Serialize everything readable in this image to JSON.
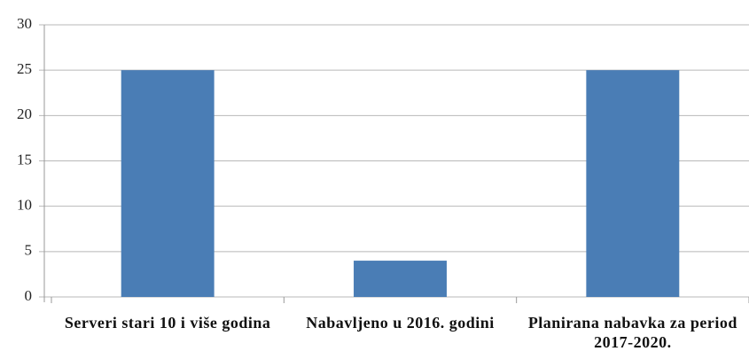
{
  "chart_data": {
    "type": "bar",
    "categories": [
      "Serveri stari 10 i više godina",
      "Nabavljeno u 2016. godini",
      "Planirana nabavka za period 2017-2020."
    ],
    "values": [
      25,
      4,
      25
    ],
    "color": "#4a7db5",
    "ylim": [
      0,
      30
    ],
    "yticks": [
      0,
      5,
      10,
      15,
      20,
      25,
      30
    ],
    "grid": true
  }
}
